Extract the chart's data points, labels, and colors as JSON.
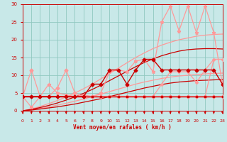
{
  "bg": "#c8e8e8",
  "grid_color": "#90c8c0",
  "xlabel": "Vent moyen/en rafales ( km/h )",
  "tick_color": "#cc0000",
  "xlim": [
    0,
    23
  ],
  "ylim": [
    0,
    30
  ],
  "yticks": [
    0,
    5,
    10,
    15,
    20,
    25,
    30
  ],
  "xticks": [
    0,
    1,
    2,
    3,
    4,
    5,
    6,
    7,
    8,
    9,
    10,
    11,
    12,
    13,
    14,
    15,
    16,
    17,
    18,
    19,
    20,
    21,
    22,
    23
  ],
  "series": [
    {
      "name": "flat_squares_dark",
      "x": [
        0,
        1,
        2,
        3,
        4,
        5,
        6,
        7,
        8,
        9,
        10,
        11,
        12,
        13,
        14,
        15,
        16,
        17,
        18,
        19,
        20,
        21,
        22,
        23
      ],
      "y": [
        4,
        4,
        4,
        4,
        4,
        4,
        4,
        4,
        4,
        4,
        4,
        4,
        4,
        4,
        4,
        4,
        4,
        4,
        4,
        4,
        4,
        4,
        4,
        4
      ],
      "color": "#cc0000",
      "lw": 1.0,
      "marker": "s",
      "ms": 2.0,
      "zorder": 6
    },
    {
      "name": "lower_envelope_pink",
      "x": [
        0,
        1,
        2,
        3,
        4,
        5,
        6,
        7,
        8,
        9,
        10,
        11,
        12,
        13,
        14,
        15,
        16,
        17,
        18,
        19,
        20,
        21,
        22,
        23
      ],
      "y": [
        0,
        0.3,
        0.7,
        1.1,
        1.6,
        2.1,
        2.7,
        3.3,
        4.0,
        4.7,
        5.4,
        6.1,
        6.8,
        7.5,
        8.1,
        8.6,
        9.1,
        9.5,
        9.8,
        10.0,
        10.2,
        10.4,
        10.5,
        10.6
      ],
      "color": "#ff9999",
      "lw": 0.9,
      "marker": null,
      "ms": 0,
      "zorder": 2
    },
    {
      "name": "upper_envelope_pink",
      "x": [
        0,
        1,
        2,
        3,
        4,
        5,
        6,
        7,
        8,
        9,
        10,
        11,
        12,
        13,
        14,
        15,
        16,
        17,
        18,
        19,
        20,
        21,
        22,
        23
      ],
      "y": [
        0,
        0.5,
        1.2,
        2.0,
        2.9,
        3.9,
        5.0,
        6.2,
        7.5,
        9.0,
        10.5,
        12.0,
        13.5,
        15.0,
        16.3,
        17.5,
        18.5,
        19.3,
        20.0,
        20.5,
        21.0,
        21.3,
        21.5,
        21.6
      ],
      "color": "#ff9999",
      "lw": 0.9,
      "marker": null,
      "ms": 0,
      "zorder": 2
    },
    {
      "name": "lower_envelope_dark",
      "x": [
        0,
        1,
        2,
        3,
        4,
        5,
        6,
        7,
        8,
        9,
        10,
        11,
        12,
        13,
        14,
        15,
        16,
        17,
        18,
        19,
        20,
        21,
        22,
        23
      ],
      "y": [
        0,
        0.2,
        0.5,
        0.8,
        1.1,
        1.5,
        1.9,
        2.4,
        2.9,
        3.4,
        4.0,
        4.6,
        5.2,
        5.8,
        6.4,
        6.9,
        7.4,
        7.8,
        8.1,
        8.3,
        8.5,
        8.6,
        8.7,
        8.8
      ],
      "color": "#cc0000",
      "lw": 0.9,
      "marker": null,
      "ms": 0,
      "zorder": 3
    },
    {
      "name": "upper_envelope_dark",
      "x": [
        0,
        1,
        2,
        3,
        4,
        5,
        6,
        7,
        8,
        9,
        10,
        11,
        12,
        13,
        14,
        15,
        16,
        17,
        18,
        19,
        20,
        21,
        22,
        23
      ],
      "y": [
        0,
        0.4,
        0.9,
        1.5,
        2.2,
        3.0,
        3.9,
        4.9,
        6.0,
        7.2,
        8.5,
        9.8,
        11.1,
        12.4,
        13.6,
        14.6,
        15.5,
        16.2,
        16.8,
        17.2,
        17.4,
        17.5,
        17.5,
        17.4
      ],
      "color": "#cc0000",
      "lw": 0.9,
      "marker": null,
      "ms": 0,
      "zorder": 3
    },
    {
      "name": "pink_diamonds_spiky",
      "x": [
        0,
        1,
        2,
        3,
        4,
        5,
        6,
        7,
        8,
        9,
        10,
        11,
        12,
        13,
        14,
        15,
        16,
        17,
        18,
        19,
        20,
        21,
        22,
        23
      ],
      "y": [
        4,
        11.5,
        4,
        4,
        6.5,
        11.5,
        5,
        4,
        4,
        4,
        4,
        4,
        4,
        4,
        4,
        4,
        4,
        4,
        4,
        4,
        4,
        4,
        4,
        4
      ],
      "color": "#ff9999",
      "lw": 0.9,
      "marker": "D",
      "ms": 2.5,
      "zorder": 5
    },
    {
      "name": "pink_stars_rising",
      "x": [
        0,
        1,
        2,
        3,
        4,
        5,
        6,
        7,
        8,
        9,
        10,
        11,
        12,
        13,
        14,
        15,
        16,
        17,
        18,
        19,
        20,
        21,
        22,
        23
      ],
      "y": [
        4,
        1,
        4,
        7.5,
        5,
        4.5,
        4,
        4.5,
        4,
        5,
        11,
        11.5,
        11,
        14,
        14.5,
        11,
        25,
        29.5,
        22.5,
        29.5,
        22,
        29.5,
        22,
        7.5
      ],
      "color": "#ff9999",
      "lw": 0.9,
      "marker": "*",
      "ms": 3.5,
      "zorder": 4
    },
    {
      "name": "dark_diamonds_moderate",
      "x": [
        0,
        1,
        2,
        3,
        4,
        5,
        6,
        7,
        8,
        9,
        10,
        11,
        12,
        13,
        14,
        15,
        16,
        17,
        18,
        19,
        20,
        21,
        22,
        23
      ],
      "y": [
        4,
        4,
        4,
        4,
        4,
        4,
        4,
        4,
        7.5,
        7.5,
        11.5,
        11.5,
        7.5,
        11.5,
        14.5,
        14.5,
        11.5,
        11.5,
        11.5,
        11.5,
        11.5,
        11.5,
        11.5,
        7.5
      ],
      "color": "#cc0000",
      "lw": 1.0,
      "marker": "D",
      "ms": 2.5,
      "zorder": 6
    },
    {
      "name": "pink_line_moderate",
      "x": [
        0,
        1,
        2,
        3,
        4,
        5,
        6,
        7,
        8,
        9,
        10,
        11,
        12,
        13,
        14,
        15,
        16,
        17,
        18,
        19,
        20,
        21,
        22,
        23
      ],
      "y": [
        4,
        4,
        4,
        4,
        4,
        4,
        4,
        4,
        4,
        4,
        4,
        4,
        4,
        4,
        4,
        4,
        4,
        4,
        4,
        4,
        4,
        4,
        14.5,
        14.5
      ],
      "color": "#ff9999",
      "lw": 0.9,
      "marker": null,
      "ms": 0,
      "zorder": 3
    },
    {
      "name": "pink_diamonds_top_right",
      "x": [
        0,
        1,
        2,
        3,
        4,
        5,
        6,
        7,
        8,
        9,
        10,
        11,
        12,
        13,
        14,
        15,
        16,
        17,
        18,
        19,
        20,
        21,
        22,
        23
      ],
      "y": [
        4,
        4,
        4,
        4,
        4,
        4,
        4,
        4,
        4,
        4,
        4,
        4,
        4,
        4,
        4,
        4,
        7.5,
        11,
        11,
        11,
        8,
        11.5,
        14.5,
        14.5
      ],
      "color": "#ff9999",
      "lw": 0.9,
      "marker": "D",
      "ms": 2.0,
      "zorder": 4
    }
  ]
}
